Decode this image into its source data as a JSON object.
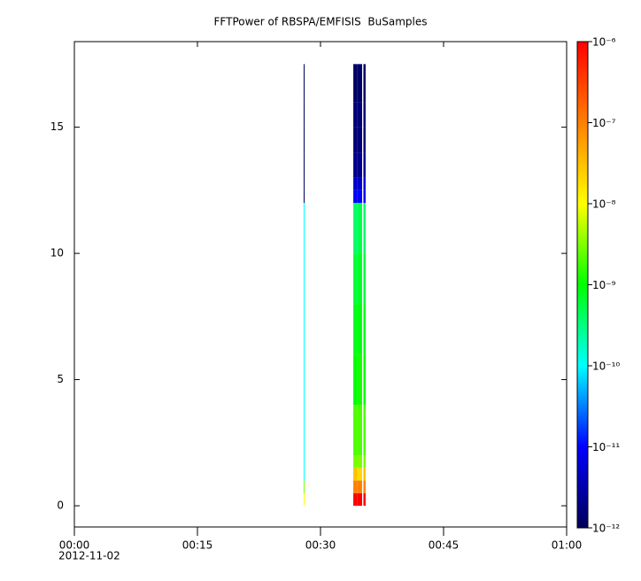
{
  "chart_data": {
    "type": "spectrogram",
    "title": "FFTPower of RBSPA/EMFISIS  BuSamples",
    "xlim": [
      0,
      60
    ],
    "xticks": [
      {
        "value": 0,
        "label": "00:00"
      },
      {
        "value": 15,
        "label": "00:15"
      },
      {
        "value": 30,
        "label": "00:30"
      },
      {
        "value": 45,
        "label": "00:45"
      },
      {
        "value": 60,
        "label": "01:00"
      }
    ],
    "x_date_label": "2012-11-02",
    "ylim": [
      -0.84,
      18.39
    ],
    "yticks": [
      0,
      5,
      10,
      15
    ],
    "y_bins": [
      0,
      0.5,
      1,
      1.5,
      2,
      4,
      6,
      8,
      10,
      12,
      12.5,
      13,
      14,
      15,
      16,
      17.5
    ],
    "zlog": true,
    "zlim": [
      1e-12,
      1e-06
    ],
    "zticks": [
      {
        "value": 1e-12,
        "label": "10⁻¹²"
      },
      {
        "value": 1e-11,
        "label": "10⁻¹¹"
      },
      {
        "value": 1e-10,
        "label": "10⁻¹⁰"
      },
      {
        "value": 1e-09,
        "label": "10⁻⁹"
      },
      {
        "value": 1e-08,
        "label": "10⁻⁸"
      },
      {
        "value": 1e-07,
        "label": "10⁻⁷"
      },
      {
        "value": 1e-06,
        "label": "10⁻⁶"
      }
    ],
    "colormap": [
      "#00005a",
      "#0000ff",
      "#00ffff",
      "#00ff00",
      "#ffff00",
      "#ff8000",
      "#ff0000"
    ],
    "columns": [
      {
        "x": [
          27.95,
          28.05
        ],
        "z": [
          1e-08,
          3e-09,
          1e-10,
          1e-10,
          1e-10,
          1e-10,
          1e-10,
          1e-10,
          1e-10,
          1e-12,
          1e-12,
          1e-12,
          1e-12,
          1e-12,
          1e-12
        ]
      },
      {
        "x": [
          34.0,
          34.5
        ],
        "z": [
          1e-06,
          1e-07,
          3e-08,
          3e-09,
          2e-09,
          1e-09,
          8e-10,
          6e-10,
          4e-10,
          1e-11,
          5e-12,
          2e-12,
          1.5e-12,
          1.5e-12,
          1.2e-12
        ]
      },
      {
        "x": [
          34.5,
          35.07
        ],
        "z": [
          1e-06,
          1e-07,
          2e-08,
          3e-09,
          2e-09,
          1.2e-09,
          9e-10,
          7e-10,
          5e-10,
          1e-11,
          5e-12,
          2e-12,
          1.5e-12,
          1.5e-12,
          1.2e-12
        ]
      },
      {
        "x": [
          35.23,
          35.5
        ],
        "z": [
          1e-06,
          1e-07,
          3e-08,
          3e-09,
          2e-09,
          1e-09,
          8e-10,
          6e-10,
          4e-10,
          1e-11,
          5e-12,
          2e-12,
          1.5e-12,
          1.5e-12,
          1.2e-12
        ]
      }
    ]
  }
}
